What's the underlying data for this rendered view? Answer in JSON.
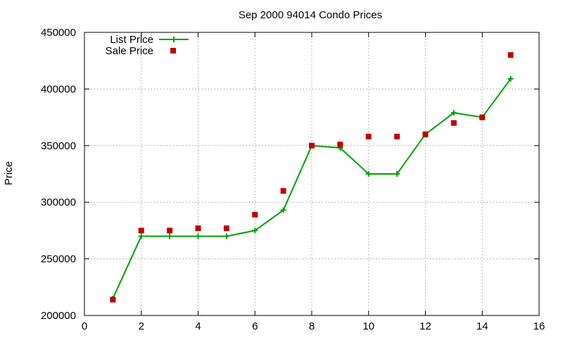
{
  "chart_data": {
    "type": "line",
    "title": "Sep 2000 94014 Condo Prices",
    "xlabel": "",
    "ylabel": "Price",
    "xlim": [
      0,
      16
    ],
    "ylim": [
      200000,
      450000
    ],
    "xticks": [
      0,
      2,
      4,
      6,
      8,
      10,
      12,
      14,
      16
    ],
    "yticks": [
      200000,
      250000,
      300000,
      350000,
      400000,
      450000
    ],
    "grid": true,
    "legend_position": "top-left",
    "series": [
      {
        "name": "List Price",
        "style": "line-plus",
        "color": "#00a000",
        "x": [
          1,
          2,
          3,
          4,
          5,
          6,
          7,
          8,
          9,
          10,
          11,
          12,
          13,
          14,
          15
        ],
        "y": [
          215000,
          270000,
          270000,
          270000,
          270000,
          275000,
          293000,
          350000,
          348000,
          325000,
          325000,
          360000,
          379000,
          375000,
          409000
        ]
      },
      {
        "name": "Sale Price",
        "style": "square-points",
        "color": "#c00000",
        "x": [
          1,
          2,
          3,
          4,
          5,
          6,
          7,
          8,
          9,
          10,
          11,
          12,
          13,
          14,
          15
        ],
        "y": [
          214000,
          275000,
          275000,
          277000,
          277000,
          289000,
          310000,
          350000,
          351000,
          358000,
          358000,
          360000,
          370000,
          375000,
          430000
        ]
      }
    ]
  }
}
